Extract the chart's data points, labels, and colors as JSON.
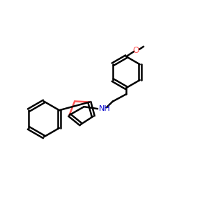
{
  "bg": "#ffffff",
  "bond": "#000000",
  "O_color": "#ff5555",
  "N_color": "#0000cc",
  "lw": 1.8,
  "lw_aromatic": 1.8,
  "figsize": [
    3.0,
    3.0
  ],
  "dpi": 100,
  "xlim": [
    0,
    10
  ],
  "ylim": [
    0,
    10
  ]
}
